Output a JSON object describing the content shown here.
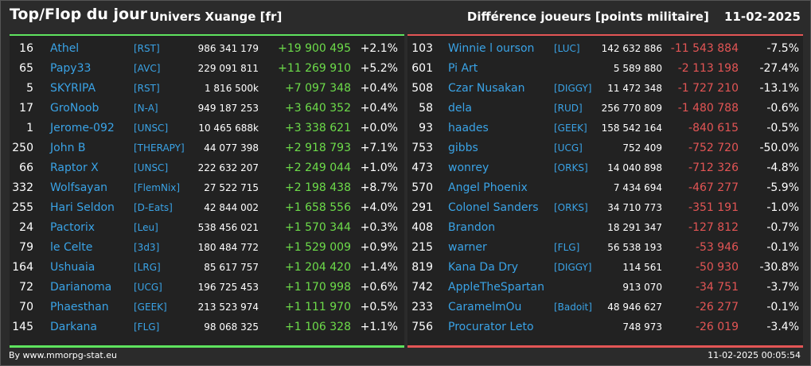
{
  "header": {
    "title": "Top/Flop du jour",
    "universe": "Univers Xuange [fr]",
    "subtitle": "Différence joueurs [points militaire]",
    "date": "11-02-2025"
  },
  "top": [
    {
      "rank": "16",
      "name": "Athel",
      "ally": "[RST]",
      "points": "986 341 179",
      "diff": "+19 900 495",
      "pct": "+2.1%"
    },
    {
      "rank": "65",
      "name": "Papy33",
      "ally": "[AVC]",
      "points": "229 091 811",
      "diff": "+11 269 910",
      "pct": "+5.2%"
    },
    {
      "rank": "5",
      "name": "SKYRIPA",
      "ally": "[RST]",
      "points": "1 816 500k",
      "diff": "+7 097 348",
      "pct": "+0.4%"
    },
    {
      "rank": "17",
      "name": "GroNoob",
      "ally": "[N-A]",
      "points": "949 187 253",
      "diff": "+3 640 352",
      "pct": "+0.4%"
    },
    {
      "rank": "1",
      "name": "Jerome-092",
      "ally": "[UNSC]",
      "points": "10 465 688k",
      "diff": "+3 338 621",
      "pct": "+0.0%"
    },
    {
      "rank": "250",
      "name": "John B",
      "ally": "[THERAPY]",
      "points": "44 077 398",
      "diff": "+2 918 793",
      "pct": "+7.1%"
    },
    {
      "rank": "66",
      "name": "Raptor X",
      "ally": "[UNSC]",
      "points": "222 632 207",
      "diff": "+2 249 044",
      "pct": "+1.0%"
    },
    {
      "rank": "332",
      "name": "Wolfsayan",
      "ally": "[FlemNix]",
      "points": "27 522 715",
      "diff": "+2 198 438",
      "pct": "+8.7%"
    },
    {
      "rank": "255",
      "name": "Hari Seldon",
      "ally": "[D-Eats]",
      "points": "42 844 002",
      "diff": "+1 658 556",
      "pct": "+4.0%"
    },
    {
      "rank": "24",
      "name": "Pactorix",
      "ally": "[Leu]",
      "points": "538 456 021",
      "diff": "+1 570 344",
      "pct": "+0.3%"
    },
    {
      "rank": "79",
      "name": "le Celte",
      "ally": "[3d3]",
      "points": "180 484 772",
      "diff": "+1 529 009",
      "pct": "+0.9%"
    },
    {
      "rank": "164",
      "name": "Ushuaia",
      "ally": "[LRG]",
      "points": "85 617 757",
      "diff": "+1 204 420",
      "pct": "+1.4%"
    },
    {
      "rank": "72",
      "name": "Darianoma",
      "ally": "[UCG]",
      "points": "196 725 453",
      "diff": "+1 170 998",
      "pct": "+0.6%"
    },
    {
      "rank": "70",
      "name": "Phaesthan",
      "ally": "[GEEK]",
      "points": "213 523 974",
      "diff": "+1 111 970",
      "pct": "+0.5%"
    },
    {
      "rank": "145",
      "name": "Darkana",
      "ally": "[FLG]",
      "points": "98 068 325",
      "diff": "+1 106 328",
      "pct": "+1.1%"
    }
  ],
  "flop": [
    {
      "rank": "103",
      "name": "Winnie l ourson",
      "ally": "[LUC]",
      "points": "142 632 886",
      "diff": "-11 543 884",
      "pct": "-7.5%"
    },
    {
      "rank": "601",
      "name": "Pi Art",
      "ally": "",
      "points": "5 589 880",
      "diff": "-2 113 198",
      "pct": "-27.4%"
    },
    {
      "rank": "508",
      "name": "Czar Nusakan",
      "ally": "[DIGGY]",
      "points": "11 472 348",
      "diff": "-1 727 210",
      "pct": "-13.1%"
    },
    {
      "rank": "58",
      "name": "dela",
      "ally": "[RUD]",
      "points": "256 770 809",
      "diff": "-1 480 788",
      "pct": "-0.6%"
    },
    {
      "rank": "93",
      "name": "haades",
      "ally": "[GEEK]",
      "points": "158 542 164",
      "diff": "-840 615",
      "pct": "-0.5%"
    },
    {
      "rank": "753",
      "name": "gibbs",
      "ally": "[UCG]",
      "points": "752 409",
      "diff": "-752 720",
      "pct": "-50.0%"
    },
    {
      "rank": "473",
      "name": "wonrey",
      "ally": "[ORKS]",
      "points": "14 040 898",
      "diff": "-712 326",
      "pct": "-4.8%"
    },
    {
      "rank": "570",
      "name": "Angel Phoenix",
      "ally": "",
      "points": "7 434 694",
      "diff": "-467 277",
      "pct": "-5.9%"
    },
    {
      "rank": "291",
      "name": "Colonel Sanders",
      "ally": "[ORKS]",
      "points": "34 710 773",
      "diff": "-351 191",
      "pct": "-1.0%"
    },
    {
      "rank": "408",
      "name": "Brandon",
      "ally": "",
      "points": "18 291 347",
      "diff": "-127 812",
      "pct": "-0.7%"
    },
    {
      "rank": "215",
      "name": "warner",
      "ally": "[FLG]",
      "points": "56 538 193",
      "diff": "-53 946",
      "pct": "-0.1%"
    },
    {
      "rank": "819",
      "name": "Kana Da Dry",
      "ally": "[DIGGY]",
      "points": "114 561",
      "diff": "-50 930",
      "pct": "-30.8%"
    },
    {
      "rank": "742",
      "name": "AppleTheSpartan",
      "ally": "",
      "points": "913 070",
      "diff": "-34 751",
      "pct": "-3.7%"
    },
    {
      "rank": "233",
      "name": "CaramelmOu",
      "ally": "[Badoit]",
      "points": "48 946 627",
      "diff": "-26 277",
      "pct": "-0.1%"
    },
    {
      "rank": "756",
      "name": "Procurator Leto",
      "ally": "",
      "points": "748 973",
      "diff": "-26 019",
      "pct": "-3.4%"
    }
  ],
  "footer": {
    "credit": "By www.mmorpg-stat.eu",
    "timestamp": "11-02-2025 00:05:54"
  },
  "colors": {
    "background": "#2b2b2b",
    "panel": "#222222",
    "positive": "#6ddc4a",
    "negative": "#e35555",
    "link": "#3aa3e6"
  }
}
